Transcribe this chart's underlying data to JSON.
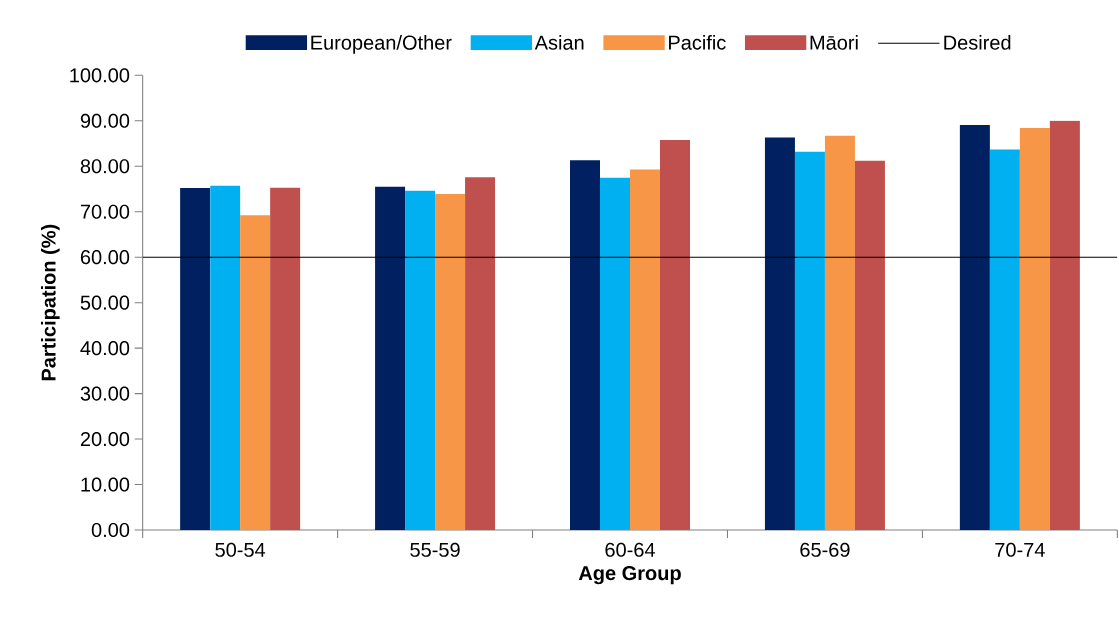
{
  "chart_data": {
    "type": "bar",
    "xlabel": "Age Group",
    "ylabel": "Participation (%)",
    "categories": [
      "50-54",
      "55-59",
      "60-64",
      "65-69",
      "70-74"
    ],
    "series": [
      {
        "name": "European/Other",
        "color": "#002060",
        "values": [
          75.2,
          75.5,
          81.3,
          86.3,
          89.1
        ]
      },
      {
        "name": "Asian",
        "color": "#00b0f0",
        "values": [
          75.7,
          74.6,
          77.5,
          83.2,
          83.7
        ]
      },
      {
        "name": "Pacific",
        "color": "#f79646",
        "values": [
          69.2,
          73.9,
          79.3,
          86.7,
          88.4
        ]
      },
      {
        "name": "Māori",
        "color": "#c0504d",
        "values": [
          75.3,
          77.6,
          85.8,
          81.2,
          90.0
        ]
      }
    ],
    "ref_lines": [
      {
        "axis": "y",
        "value": 60,
        "label": "Desired",
        "color": "#000000"
      }
    ],
    "ylim": [
      0,
      100
    ],
    "yticks": [
      {
        "value": 0,
        "label": "0.00"
      },
      {
        "value": 10,
        "label": "10.00"
      },
      {
        "value": 20,
        "label": "20.00"
      },
      {
        "value": 30,
        "label": "30.00"
      },
      {
        "value": 40,
        "label": "40.00"
      },
      {
        "value": 50,
        "label": "50.00"
      },
      {
        "value": 60,
        "label": "60.00"
      },
      {
        "value": 70,
        "label": "70.00"
      },
      {
        "value": 80,
        "label": "80.00"
      },
      {
        "value": 90,
        "label": "90.00"
      },
      {
        "value": 100,
        "label": "100.00"
      }
    ],
    "legend": "top",
    "grid": false
  }
}
